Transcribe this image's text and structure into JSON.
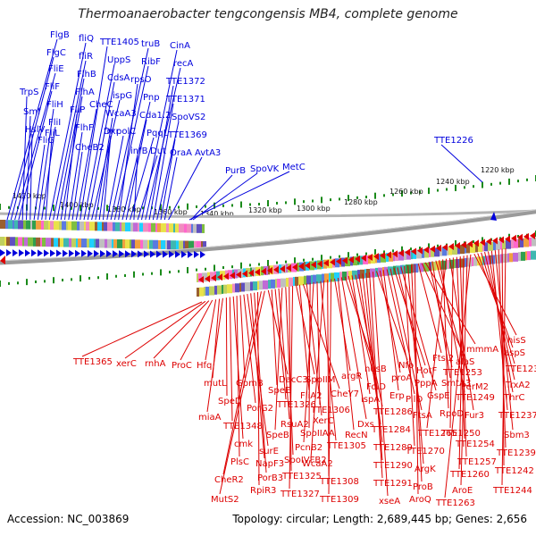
{
  "title": "Thermoanaerobacter tengcongensis MB4, complete genome",
  "accession": "Accession: NC_003869",
  "topology": "Topology: circular; Length: 2,689,445 bp; Genes: 2,656",
  "colors": {
    "forward": "#0000dd",
    "reverse": "#dd0000",
    "tick": "#1a8a1a",
    "ring": "#888888"
  },
  "kbp_labels": [
    "1420 kbp",
    "1400 kbp",
    "1380 kbp",
    "1360 kbp",
    "1340 kbp",
    "1320 kbp",
    "1300 kbp",
    "1280 kbp",
    "1260 kbp",
    "1240 kbp",
    "1220 kbp"
  ],
  "forward_genes": [
    "FlgB",
    "FlgC",
    "FliE",
    "FliF",
    "TrpS",
    "Smf",
    "HslV",
    "FliG",
    "FliH",
    "FliI",
    "FliL",
    "fliQ",
    "fliR",
    "FlhB",
    "FlhA",
    "FliP",
    "FlhF",
    "CheB2",
    "CheC",
    "TTE1405",
    "UppS",
    "CdsA",
    "ispG",
    "WcaA3",
    "Dxr",
    "frr",
    "polC",
    "truB",
    "RibF",
    "rpsO",
    "Pnp",
    "Cda1.2",
    "PqqL",
    "infB",
    "Dut",
    "CinA",
    "recA",
    "TTE1372",
    "TTE1371",
    "SpoVS2",
    "TTE1369",
    "OraA",
    "AvtA3",
    "PurB",
    "SpoVK",
    "MetC",
    "TTE1226"
  ],
  "reverse_genes": [
    "TTE1365",
    "xerC",
    "rnhA",
    "ProC",
    "Hfq",
    "mutL",
    "miaA",
    "SpeD",
    "TTE1348",
    "cmk",
    "PlsC",
    "GpmB",
    "PorG2",
    "surE",
    "NapF3",
    "PorB3",
    "RpiR3",
    "CheR2",
    "MutS2",
    "DacC3",
    "SpeE",
    "TTE1326",
    "RsuA2",
    "SpeB",
    "SpoIVFB2",
    "TTE1325",
    "TTE1327",
    "SpoIIM",
    "FliA2",
    "CheY7",
    "XerC",
    "SpoIIAA",
    "PcnB2",
    "TTE1306",
    "TTE1305",
    "WcaA2",
    "TTE1308",
    "TTE1309",
    "argR",
    "RecN",
    "Dxs",
    "nusB",
    "FolD",
    "ispA",
    "TTE1286",
    "TTE1284",
    "TTE1289",
    "TTE1290",
    "TTE1291",
    "xseA",
    "Nfo",
    "proA",
    "Erp",
    "PilO",
    "FtsA",
    "HotF",
    "PppA",
    "GspE",
    "TTE1270",
    "ArgK",
    "ProB",
    "AroQ",
    "Ftsl2",
    "alaS",
    "mmmA",
    "TTE1253",
    "SmtA3",
    "PerM2",
    "TTE1249",
    "RpoD",
    "TTE1265",
    "Fur3",
    "TTE1250",
    "TTE1254",
    "TTE1257",
    "TTE1260",
    "AroE",
    "TTE1263",
    "hisS",
    "aspS",
    "TTE1232",
    "TrxA2",
    "ThrC",
    "TTE1237",
    "Sbm3",
    "TTE1239",
    "TTE1242",
    "TTE1244"
  ]
}
